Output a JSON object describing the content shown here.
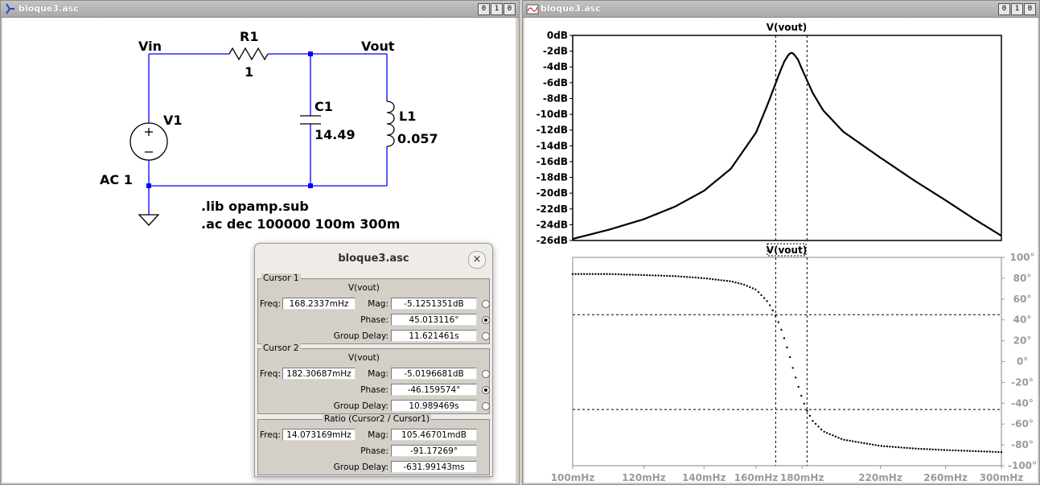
{
  "schematic_window": {
    "title": "bloque3.asc",
    "buttons": [
      "0",
      "1",
      "0"
    ],
    "labels": {
      "vin": "Vin",
      "vout": "Vout",
      "r1_name": "R1",
      "r1_value": "1",
      "c1_name": "C1",
      "c1_value": "14.49",
      "l1_name": "L1",
      "l1_value": "0.057",
      "v1_name": "V1",
      "v1_value": "AC 1",
      "directive_lib": ".lib opamp.sub",
      "directive_ac": ".ac dec 100000 100m 300m"
    }
  },
  "plot_window": {
    "title": "bloque3.asc",
    "buttons": [
      "0",
      "1",
      "0"
    ],
    "top_pane_title": "V(vout)",
    "bottom_pane_title": "V(vout)",
    "mag_ticks": [
      "0dB",
      "-2dB",
      "-4dB",
      "-6dB",
      "-8dB",
      "-10dB",
      "-12dB",
      "-14dB",
      "-16dB",
      "-18dB",
      "-20dB",
      "-22dB",
      "-24dB",
      "-26dB"
    ],
    "phase_ticks": [
      "100°",
      "80°",
      "60°",
      "40°",
      "20°",
      "0°",
      "-20°",
      "-40°",
      "-60°",
      "-80°",
      "-100°"
    ],
    "x_ticks": [
      "100mHz",
      "120mHz",
      "140mHz",
      "160mHz",
      "180mHz",
      "220mHz",
      "260mHz",
      "300mHz"
    ]
  },
  "chart_data": [
    {
      "type": "line",
      "title": "V(vout)",
      "series": [
        {
          "name": "V(vout)",
          "x": [
            0.1,
            0.11,
            0.12,
            0.13,
            0.14,
            0.15,
            0.16,
            0.165,
            0.17,
            0.172,
            0.174,
            0.175,
            0.176,
            0.178,
            0.18,
            0.185,
            0.19,
            0.2,
            0.22,
            0.24,
            0.26,
            0.28,
            0.3
          ],
          "y": [
            -25.8,
            -24.6,
            -23.3,
            -21.7,
            -19.7,
            -16.9,
            -12.3,
            -8.6,
            -4.7,
            -3.3,
            -2.4,
            -2.2,
            -2.3,
            -3.0,
            -4.3,
            -7.3,
            -9.5,
            -12.2,
            -15.5,
            -18.4,
            -20.9,
            -23.3,
            -25.4
          ]
        }
      ],
      "ylim": [
        -26,
        0
      ],
      "xlim": [
        0.1,
        0.3
      ],
      "x_scale": "log",
      "cursors_x": [
        0.1682337,
        0.18230687
      ]
    },
    {
      "type": "line",
      "title": "V(vout)",
      "series": [
        {
          "name": "V(vout)",
          "x": [
            0.1,
            0.11,
            0.12,
            0.13,
            0.14,
            0.15,
            0.155,
            0.16,
            0.165,
            0.168,
            0.17,
            0.172,
            0.174,
            0.176,
            0.178,
            0.18,
            0.182,
            0.185,
            0.19,
            0.2,
            0.22,
            0.24,
            0.26,
            0.28,
            0.3
          ],
          "y": [
            84,
            84,
            83,
            82,
            80,
            77,
            74,
            69,
            57,
            45,
            35,
            22,
            8,
            -8,
            -22,
            -35,
            -46,
            -57,
            -67,
            -75,
            -81,
            -83.5,
            -85,
            -86,
            -87
          ]
        }
      ],
      "ylim": [
        -100,
        100
      ],
      "xlim": [
        0.1,
        0.3
      ],
      "x_scale": "log",
      "grid_y": [
        45,
        -46
      ],
      "cursors_x": [
        0.1682337,
        0.18230687
      ]
    }
  ],
  "cursor_dialog": {
    "title": "bloque3.asc",
    "close": "×",
    "cursor1": {
      "group_label": "Cursor 1",
      "trace": "V(vout)",
      "freq_label": "Freq:",
      "freq": "168.2337mHz",
      "mag_label": "Mag:",
      "mag": "-5.1251351dB",
      "phase_label": "Phase:",
      "phase": "45.013116°",
      "gd_label": "Group Delay:",
      "gd": "11.621461s",
      "selected": "phase"
    },
    "cursor2": {
      "group_label": "Cursor 2",
      "trace": "V(vout)",
      "freq_label": "Freq:",
      "freq": "182.30687mHz",
      "mag_label": "Mag:",
      "mag": "-5.0196681dB",
      "phase_label": "Phase:",
      "phase": "-46.159574°",
      "gd_label": "Group Delay:",
      "gd": "10.989469s",
      "selected": "phase"
    },
    "ratio": {
      "group_label": "Ratio (Cursor2 / Cursor1)",
      "freq_label": "Freq:",
      "freq": "14.073169mHz",
      "mag_label": "Mag:",
      "mag": "105.46701mdB",
      "phase_label": "Phase:",
      "phase": "-91.17269°",
      "gd_label": "Group Delay:",
      "gd": "-631.99143ms"
    }
  }
}
